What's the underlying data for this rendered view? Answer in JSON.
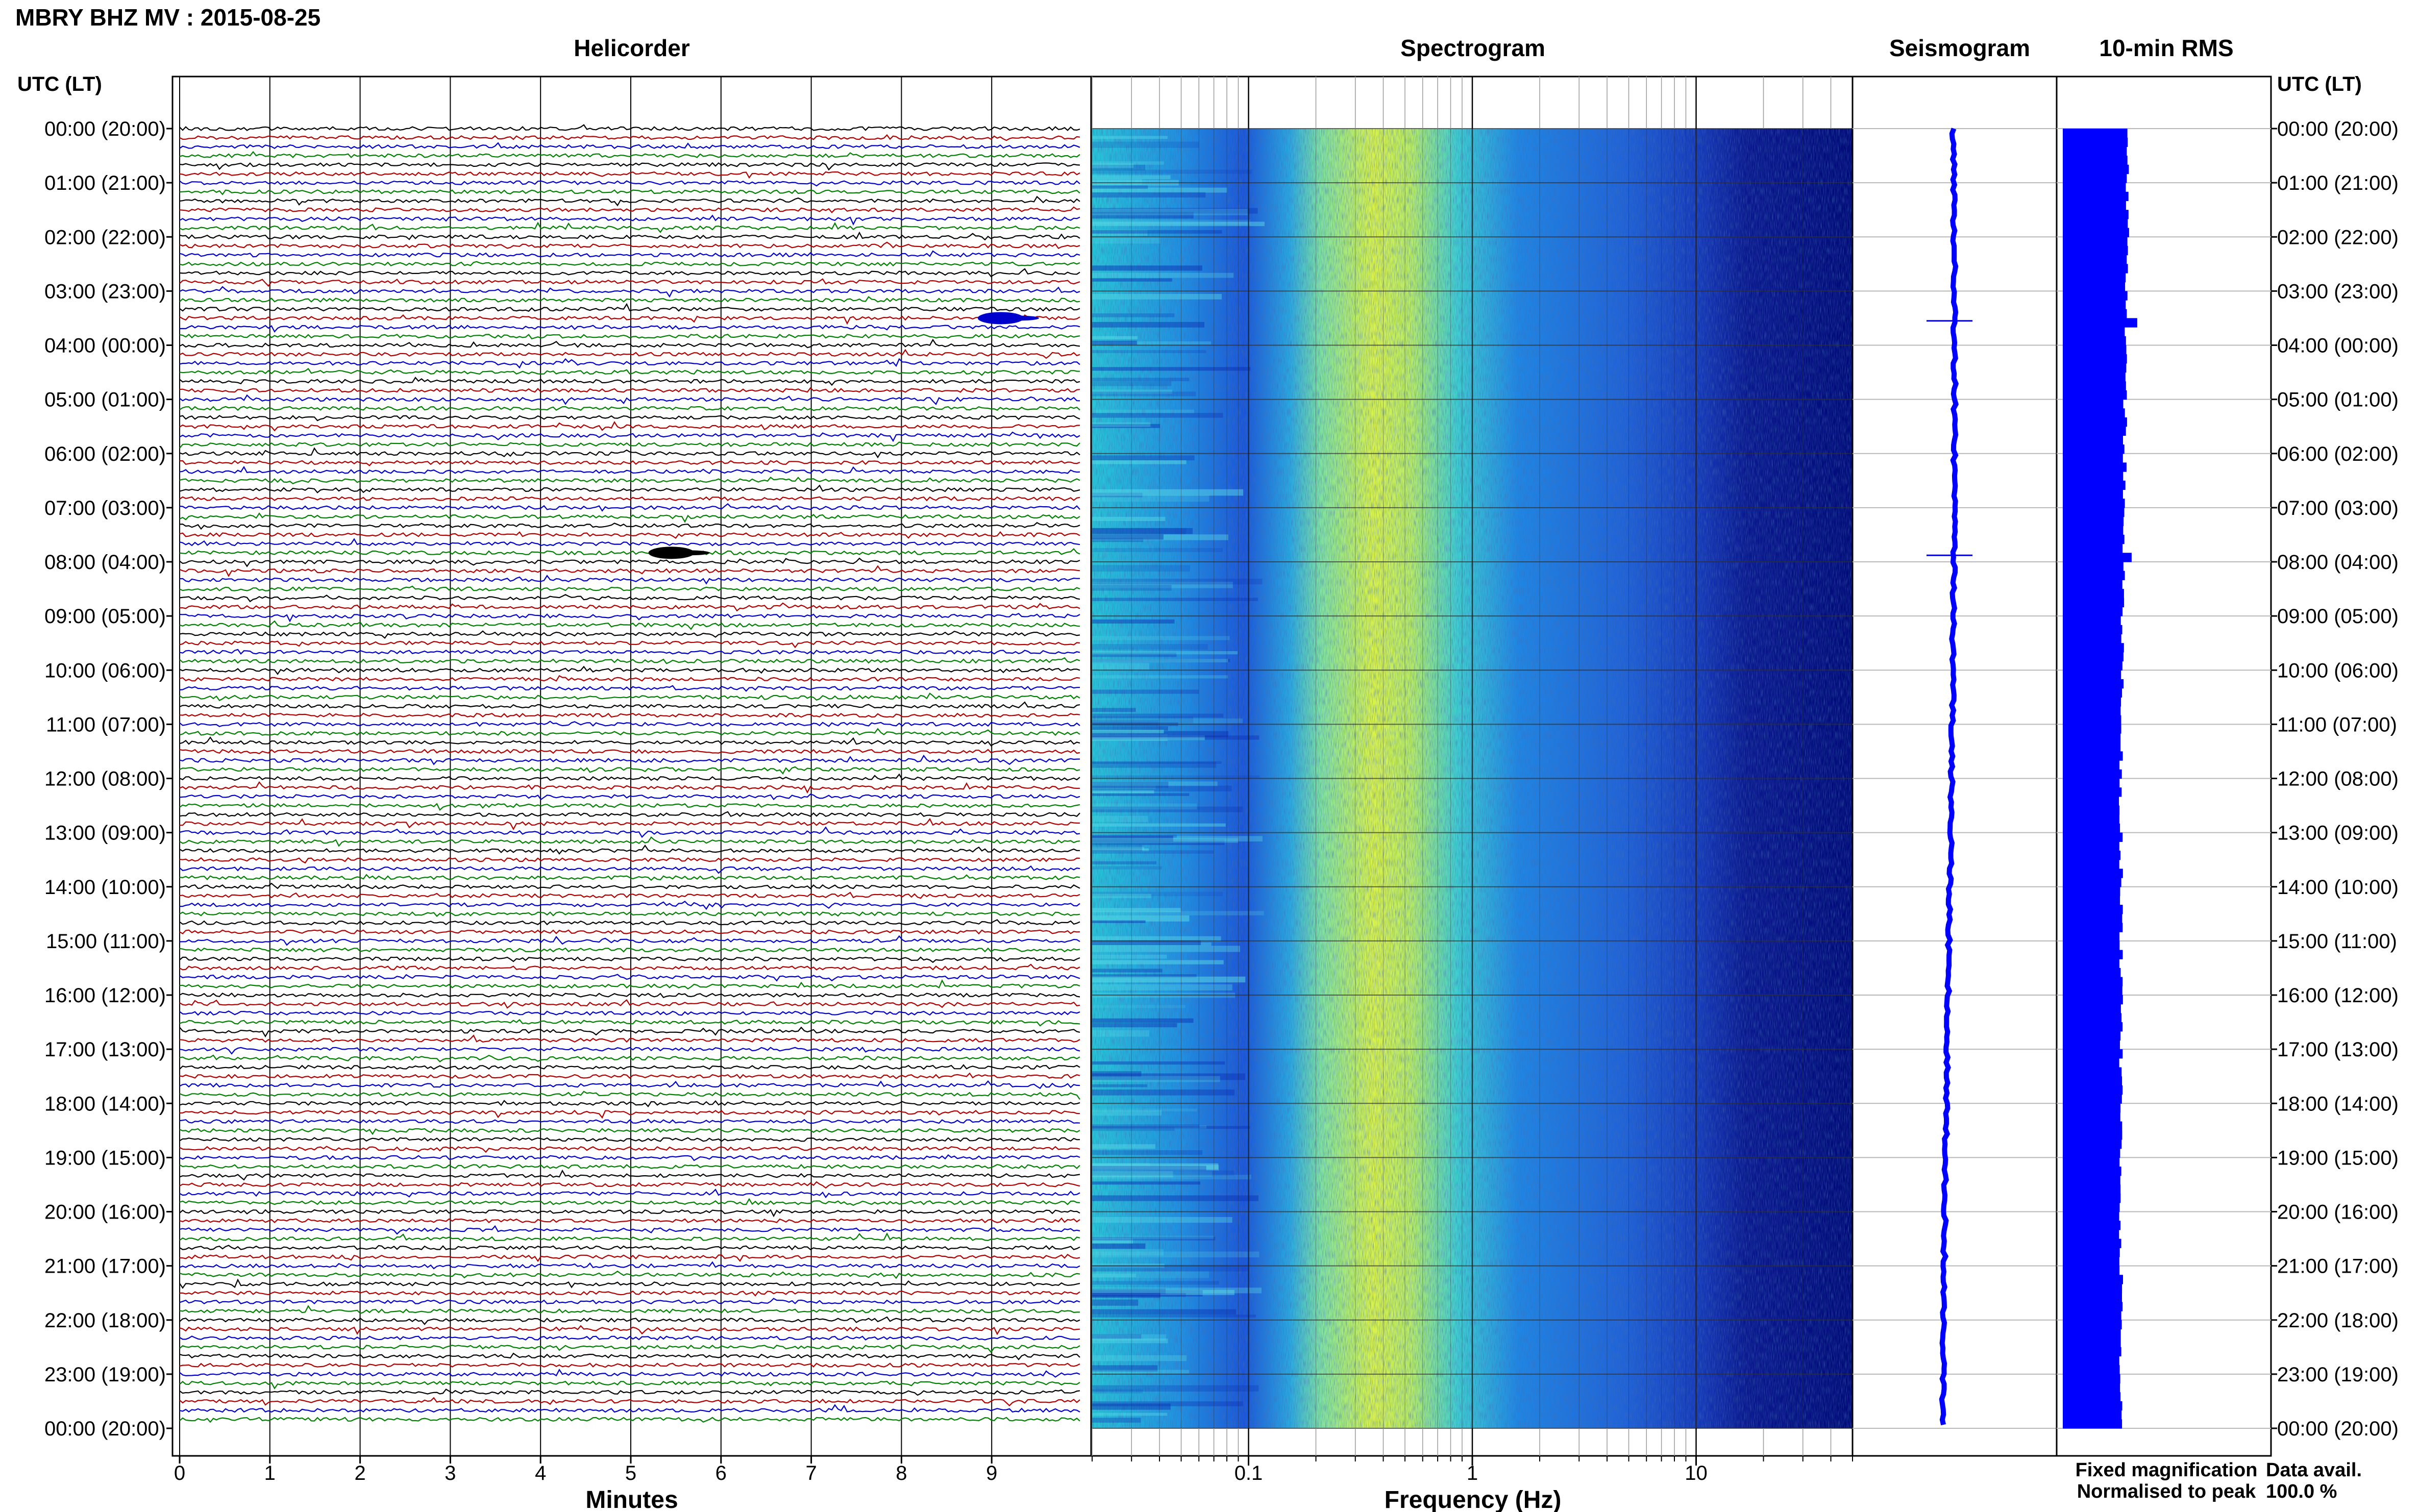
{
  "chart_data": {
    "type": "seismic-daily-summary",
    "title": "MBRY BHZ MV : 2015-08-25",
    "panels": {
      "helicorder": {
        "title": "Helicorder",
        "xlabel": "Minutes",
        "x_ticks": [
          "0",
          "1",
          "2",
          "3",
          "4",
          "5",
          "6",
          "7",
          "8",
          "9"
        ],
        "xlim": [
          0,
          10
        ],
        "line_count": 144,
        "trace_colors": [
          "#000000",
          "#b00000",
          "#0000cc",
          "#008000"
        ],
        "events": [
          {
            "utc_hour": 3.5,
            "minute": 9.1,
            "color": "#0000cc"
          },
          {
            "utc_hour": 7.83,
            "minute": 5.45,
            "color": "#000000"
          }
        ]
      },
      "spectrogram": {
        "title": "Spectrogram",
        "xlabel": "Frequency (Hz)",
        "scale": "log",
        "x_ticks": [
          "0.1",
          "1",
          "10"
        ],
        "xlim": [
          0.02,
          50
        ],
        "peak_band_hz": [
          0.25,
          0.6
        ]
      },
      "seismogram": {
        "title": "Seismogram",
        "color": "#0000ff"
      },
      "rms": {
        "title": "10-min RMS",
        "color": "#0000ff"
      }
    },
    "y_axis": {
      "left_label": "UTC (LT)",
      "right_label": "UTC (LT)",
      "ticks": [
        "00:00 (20:00)",
        "01:00 (21:00)",
        "02:00 (22:00)",
        "03:00 (23:00)",
        "04:00 (00:00)",
        "05:00 (01:00)",
        "06:00 (02:00)",
        "07:00 (03:00)",
        "08:00 (04:00)",
        "09:00 (05:00)",
        "10:00 (06:00)",
        "11:00 (07:00)",
        "12:00 (08:00)",
        "13:00 (09:00)",
        "14:00 (10:00)",
        "15:00 (11:00)",
        "16:00 (12:00)",
        "17:00 (13:00)",
        "18:00 (14:00)",
        "19:00 (15:00)",
        "20:00 (16:00)",
        "21:00 (17:00)",
        "22:00 (18:00)",
        "23:00 (19:00)",
        "00:00 (20:00)"
      ],
      "ylim_hours": [
        0,
        24
      ]
    },
    "legend": {
      "fixed": "Fixed magnification",
      "fixed_color": "#0000ff",
      "normalised": "Normalised to peak",
      "normalised_color": "#ff0000"
    },
    "data_availability": {
      "label": "Data avail.",
      "value": "100.0 %"
    }
  }
}
